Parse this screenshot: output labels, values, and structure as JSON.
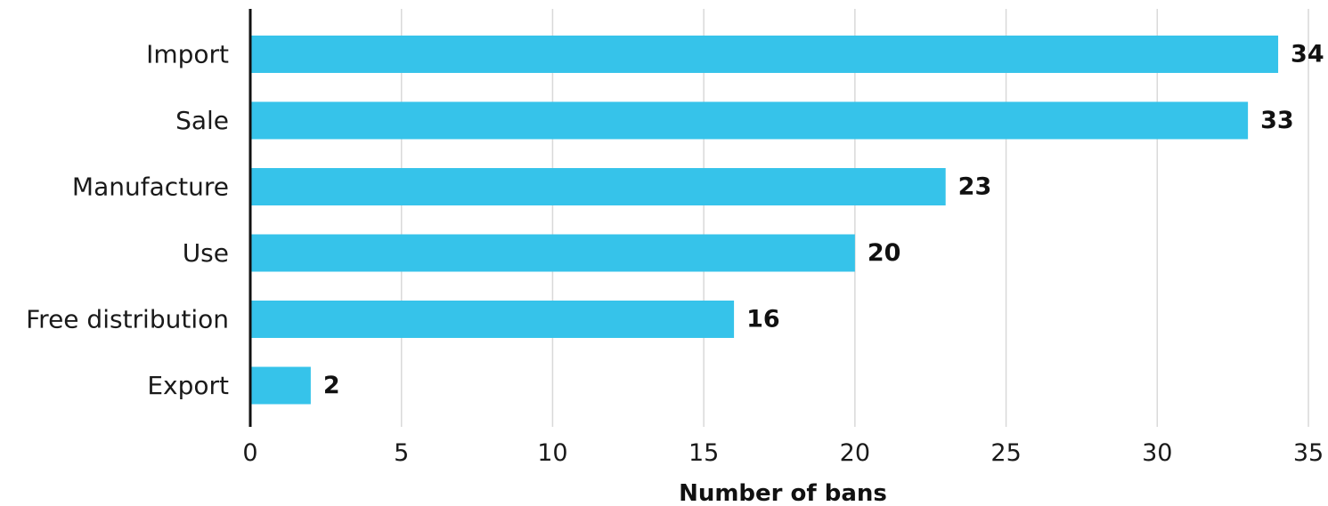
{
  "chart_data": {
    "type": "bar",
    "orientation": "horizontal",
    "title": "",
    "xlabel": "Number of bans",
    "ylabel": "",
    "categories": [
      "Import",
      "Sale",
      "Manufacture",
      "Use",
      "Free distribution",
      "Export"
    ],
    "values": [
      34,
      33,
      23,
      20,
      16,
      2
    ],
    "xlim": [
      0,
      35
    ],
    "xticks": [
      0,
      5,
      10,
      15,
      20,
      25,
      30,
      35
    ],
    "grid": "vertical",
    "legend": "none",
    "bar_color": "#36c3ea",
    "gridline_color": "#d9d9d9",
    "axis_color": "#111111"
  }
}
